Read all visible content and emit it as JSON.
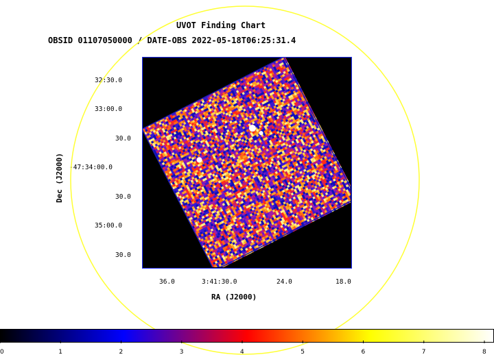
{
  "title": "UVOT Finding Chart",
  "subtitle": "OBSID 01107050000 / DATE-OBS 2022-05-18T06:25:31.4",
  "chart_data": {
    "type": "heatmap",
    "title": "UVOT Finding Chart",
    "subtitle": "OBSID 01107050000 / DATE-OBS 2022-05-18T06:25:31.4",
    "xlabel": "RA (J2000)",
    "ylabel": "Dec (J2000)",
    "x_ticks": [
      "36.0",
      "3:41:30.0",
      "24.0",
      "18.0"
    ],
    "y_ticks": [
      "32:30.0",
      "33:00.0",
      "30.0",
      "-47:34:00.0",
      "30.0",
      "35:00.0",
      "30.0"
    ],
    "colorbar": {
      "ticks": [
        "0",
        "1",
        "2",
        "3",
        "4",
        "5",
        "6",
        "7",
        "8"
      ],
      "range": [
        0,
        8
      ],
      "colormap": [
        "#000000",
        "#0000ff",
        "#ff0000",
        "#ffff00",
        "#ffffff"
      ]
    },
    "field_of_view": "yellow-circle",
    "image_rotation_deg": -27,
    "frame_color": "#1f2dff",
    "circle_color": "#ffff33"
  }
}
